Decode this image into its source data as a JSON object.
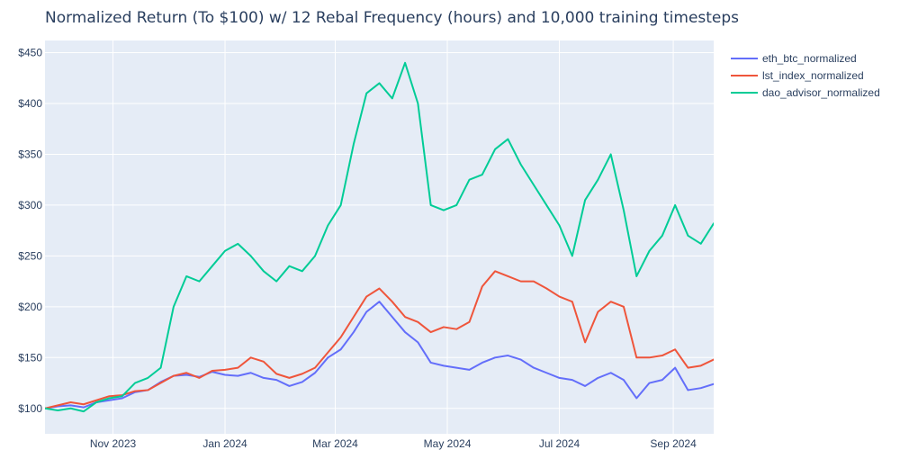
{
  "chart_data": {
    "type": "line",
    "title": "Normalized Return (To $100) w/ 12 Rebal Frequency (hours) and 10,000 training timesteps",
    "xlabel": "",
    "ylabel": "",
    "x_range": [
      "2023-09-25",
      "2024-09-23"
    ],
    "ylim": [
      75,
      462
    ],
    "y_ticks": [
      100,
      150,
      200,
      250,
      300,
      350,
      400,
      450
    ],
    "y_tick_labels": [
      "$100",
      "$150",
      "$200",
      "$250",
      "$300",
      "$350",
      "$400",
      "$450"
    ],
    "x_ticks": [
      "2023-11-01",
      "2024-01-01",
      "2024-03-01",
      "2024-05-01",
      "2024-07-01",
      "2024-09-01"
    ],
    "x_tick_labels": [
      "Nov 2023",
      "Jan 2024",
      "Mar 2024",
      "May 2024",
      "Jul 2024",
      "Sep 2024"
    ],
    "grid": true,
    "legend_position": "top-right",
    "background": "#E5ECF6",
    "x": [
      "2023-09-25",
      "2023-10-02",
      "2023-10-09",
      "2023-10-16",
      "2023-10-23",
      "2023-10-30",
      "2023-11-06",
      "2023-11-13",
      "2023-11-20",
      "2023-11-27",
      "2023-12-04",
      "2023-12-11",
      "2023-12-18",
      "2023-12-25",
      "2024-01-01",
      "2024-01-08",
      "2024-01-15",
      "2024-01-22",
      "2024-01-29",
      "2024-02-05",
      "2024-02-12",
      "2024-02-19",
      "2024-02-26",
      "2024-03-04",
      "2024-03-11",
      "2024-03-18",
      "2024-03-25",
      "2024-04-01",
      "2024-04-08",
      "2024-04-15",
      "2024-04-22",
      "2024-04-29",
      "2024-05-06",
      "2024-05-13",
      "2024-05-20",
      "2024-05-27",
      "2024-06-03",
      "2024-06-10",
      "2024-06-17",
      "2024-06-24",
      "2024-07-01",
      "2024-07-08",
      "2024-07-15",
      "2024-07-22",
      "2024-07-29",
      "2024-08-05",
      "2024-08-12",
      "2024-08-19",
      "2024-08-26",
      "2024-09-02",
      "2024-09-09",
      "2024-09-16",
      "2024-09-23"
    ],
    "series": [
      {
        "name": "eth_btc_normalized",
        "color": "#636EFA",
        "values": [
          100,
          102,
          103,
          101,
          106,
          108,
          110,
          116,
          118,
          126,
          132,
          133,
          131,
          136,
          133,
          132,
          135,
          130,
          128,
          122,
          126,
          135,
          150,
          158,
          175,
          195,
          205,
          190,
          175,
          165,
          145,
          142,
          140,
          138,
          145,
          150,
          152,
          148,
          140,
          135,
          130,
          128,
          122,
          130,
          135,
          128,
          110,
          125,
          128,
          140,
          118,
          120,
          124
        ]
      },
      {
        "name": "lst_index_normalized",
        "color": "#EF553B",
        "values": [
          100,
          103,
          106,
          104,
          108,
          112,
          113,
          117,
          118,
          125,
          132,
          135,
          130,
          137,
          138,
          140,
          150,
          146,
          134,
          130,
          134,
          140,
          155,
          170,
          190,
          210,
          218,
          205,
          190,
          185,
          175,
          180,
          178,
          185,
          220,
          235,
          230,
          225,
          225,
          218,
          210,
          205,
          165,
          195,
          205,
          200,
          150,
          150,
          152,
          158,
          140,
          142,
          148
        ]
      },
      {
        "name": "dao_advisor_normalized",
        "color": "#00CC96",
        "values": [
          100,
          98,
          100,
          97,
          106,
          110,
          112,
          125,
          130,
          140,
          200,
          230,
          225,
          240,
          255,
          262,
          250,
          235,
          225,
          240,
          235,
          250,
          280,
          300,
          360,
          410,
          420,
          405,
          440,
          400,
          300,
          295,
          300,
          325,
          330,
          355,
          365,
          340,
          320,
          300,
          280,
          250,
          305,
          325,
          350,
          295,
          230,
          255,
          270,
          300,
          270,
          262,
          282
        ]
      }
    ]
  }
}
